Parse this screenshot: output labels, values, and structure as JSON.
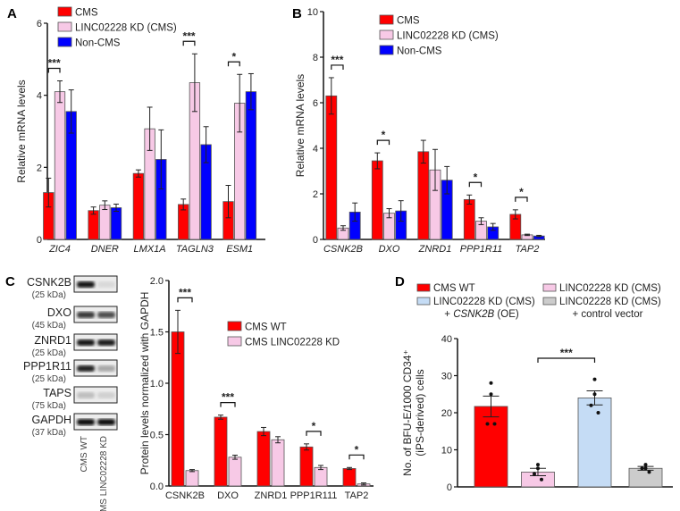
{
  "panels": {
    "A": "A",
    "B": "B",
    "C": "C",
    "D": "D"
  },
  "colors": {
    "cms": "#ff0000",
    "kd": "#f7c9e6",
    "noncms": "#0000ff",
    "oe": "#c5dcf5",
    "control": "#cccccc"
  },
  "blot": {
    "proteins": [
      {
        "name": "CSNK2B",
        "kda": "(25 kDa)"
      },
      {
        "name": "DXO",
        "kda": "(45 kDa)"
      },
      {
        "name": "ZNRD1",
        "kda": "(25 kDa)"
      },
      {
        "name": "PPP1R11",
        "kda": "(25 kDa)"
      },
      {
        "name": "TAPS",
        "kda": "(75 kDa)"
      },
      {
        "name": "GAPDH",
        "kda": "(37 kDa)"
      }
    ],
    "lanes": [
      "CMS WT",
      "CMS LINC02228 KD"
    ]
  },
  "chart_data": [
    {
      "panel": "A",
      "type": "bar",
      "ylabel": "Relative mRNA levels",
      "ylim": [
        0,
        6
      ],
      "yticks": [
        "0",
        "2",
        "4",
        "6"
      ],
      "categories": [
        "ZIC4",
        "DNER",
        "LMX1A",
        "TAGLN3",
        "ESM1"
      ],
      "categories_italic": true,
      "legend": "top-left",
      "series": [
        {
          "name": "CMS",
          "color": "#ff0000",
          "values": [
            1.3,
            0.8,
            1.83,
            0.97,
            1.05
          ],
          "errors": [
            0.4,
            0.1,
            0.1,
            0.15,
            0.45
          ]
        },
        {
          "name": "LINC02228 KD (CMS)",
          "color": "#f7c9e6",
          "values": [
            4.1,
            0.95,
            3.07,
            4.35,
            3.78
          ],
          "errors": [
            0.3,
            0.12,
            0.6,
            0.8,
            0.8
          ]
        },
        {
          "name": "Non-CMS",
          "color": "#0000ff",
          "values": [
            3.55,
            0.88,
            2.22,
            2.63,
            4.1
          ],
          "errors": [
            0.6,
            0.1,
            0.82,
            0.5,
            0.5
          ]
        }
      ],
      "significance": [
        {
          "category": "ZIC4",
          "label": "***"
        },
        {
          "category": "TAGLN3",
          "label": "***"
        },
        {
          "category": "ESM1",
          "label": "*"
        }
      ]
    },
    {
      "panel": "B",
      "type": "bar",
      "ylabel": "Relative mRNA levels",
      "ylim": [
        0,
        10
      ],
      "yticks": [
        "0",
        "2",
        "4",
        "6",
        "8",
        "10"
      ],
      "categories": [
        "CSNK2B",
        "DXO",
        "ZNRD1",
        "PPP1R11",
        "TAP2"
      ],
      "categories_italic": true,
      "legend": "top-center",
      "series": [
        {
          "name": "CMS",
          "color": "#ff0000",
          "values": [
            6.3,
            3.45,
            3.85,
            1.75,
            1.1
          ],
          "errors": [
            0.8,
            0.35,
            0.5,
            0.2,
            0.2
          ]
        },
        {
          "name": "LINC02228 KD (CMS)",
          "color": "#f7c9e6",
          "values": [
            0.5,
            1.15,
            3.05,
            0.8,
            0.2
          ],
          "errors": [
            0.1,
            0.2,
            0.9,
            0.15,
            0.03
          ]
        },
        {
          "name": "Non-CMS",
          "color": "#0000ff",
          "values": [
            1.2,
            1.25,
            2.6,
            0.55,
            0.15
          ],
          "errors": [
            0.4,
            0.45,
            0.6,
            0.15,
            0.03
          ]
        }
      ],
      "significance": [
        {
          "category": "CSNK2B",
          "label": "***"
        },
        {
          "category": "DXO",
          "label": "*"
        },
        {
          "category": "PPP1R11",
          "label": "*"
        },
        {
          "category": "TAP2",
          "label": "*"
        }
      ]
    },
    {
      "panel": "C",
      "type": "bar",
      "ylabel": "Protein levels normalized with GAPDH",
      "ylim": [
        0,
        2.0
      ],
      "yticks": [
        "0.0",
        "0.5",
        "1.0",
        "1.5",
        "2.0"
      ],
      "categories": [
        "CSNK2B",
        "DXO",
        "ZNRD1",
        "PPP1R111",
        "TAP2"
      ],
      "categories_italic": false,
      "legend": "right",
      "series": [
        {
          "name": "CMS WT",
          "color": "#ff0000",
          "values": [
            1.5,
            0.67,
            0.53,
            0.38,
            0.17
          ],
          "errors": [
            0.21,
            0.02,
            0.04,
            0.03,
            0.01
          ]
        },
        {
          "name": "CMS LINC02228 KD",
          "color": "#f7c9e6",
          "values": [
            0.15,
            0.28,
            0.45,
            0.18,
            0.02
          ],
          "errors": [
            0.01,
            0.02,
            0.03,
            0.02,
            0.01
          ]
        }
      ],
      "significance": [
        {
          "category": "CSNK2B",
          "label": "***"
        },
        {
          "category": "DXO",
          "label": "***"
        },
        {
          "category": "PPP1R111",
          "label": "*"
        },
        {
          "category": "TAP2",
          "label": "*"
        }
      ]
    },
    {
      "panel": "D",
      "type": "bar",
      "ylabel": "No. of BFU-E/1000 CD34⁺",
      "ylabel2": "(iPS-derived) cells",
      "ylim": [
        0,
        40
      ],
      "yticks": [
        "0",
        "10",
        "20",
        "30",
        "40"
      ],
      "legend": "top",
      "legend_entries": [
        {
          "label": "CMS WT",
          "color": "#ff0000"
        },
        {
          "label": "LINC02228 KD (CMS)",
          "color": "#f7c9e6"
        },
        {
          "label": "LINC02228 KD (CMS)",
          "sub_prefix": "+ ",
          "sub_italic": "CSNK2B",
          "sub_suffix": " (OE)",
          "color": "#c5dcf5"
        },
        {
          "label": "LINC02228 KD (CMS)",
          "sub": "+ control vector",
          "color": "#cccccc"
        }
      ],
      "bars": [
        {
          "color": "#ff0000",
          "value": 21.7,
          "error": 2.8,
          "points": [
            28,
            25,
            17,
            17
          ]
        },
        {
          "color": "#f7c9e6",
          "value": 4.0,
          "error": 1.0,
          "points": [
            6,
            5,
            3.5,
            2
          ]
        },
        {
          "color": "#c5dcf5",
          "value": 24.0,
          "error": 1.9,
          "points": [
            29,
            25,
            22,
            20
          ]
        },
        {
          "color": "#cccccc",
          "value": 5.0,
          "error": 0.5,
          "points": [
            6,
            5,
            5,
            4
          ]
        }
      ],
      "significance": [
        {
          "between": [
            1,
            2
          ],
          "label": "***"
        }
      ]
    }
  ]
}
